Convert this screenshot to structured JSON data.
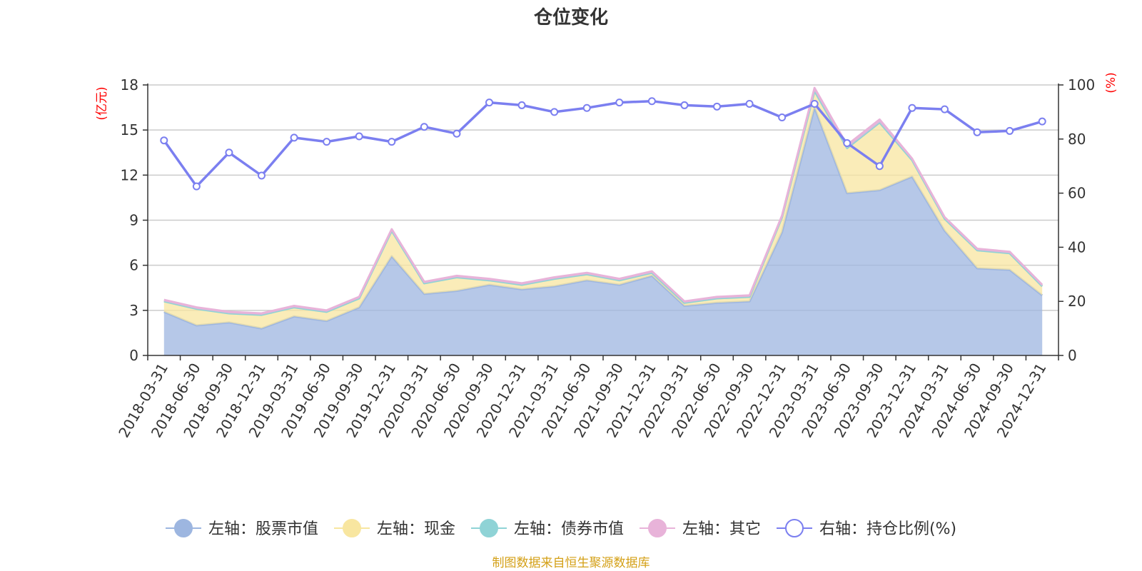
{
  "chart_data": {
    "type": "area",
    "title": "仓位变化",
    "left_unit": "(亿元)",
    "right_unit": "(%)",
    "categories": [
      "2018-03-31",
      "2018-06-30",
      "2018-09-30",
      "2018-12-31",
      "2019-03-31",
      "2019-06-30",
      "2019-09-30",
      "2019-12-31",
      "2020-03-31",
      "2020-06-30",
      "2020-09-30",
      "2020-12-31",
      "2021-03-31",
      "2021-06-30",
      "2021-09-30",
      "2021-12-31",
      "2022-03-31",
      "2022-06-30",
      "2022-09-30",
      "2022-12-31",
      "2023-03-31",
      "2023-06-30",
      "2023-09-30",
      "2023-12-31",
      "2024-03-31",
      "2024-06-30",
      "2024-09-30",
      "2024-12-31"
    ],
    "left_axis": {
      "min": 0,
      "max": 18,
      "ticks": [
        0,
        3,
        6,
        9,
        12,
        15,
        18
      ]
    },
    "right_axis": {
      "min": 0,
      "max": 100,
      "ticks": [
        0,
        20,
        40,
        60,
        80,
        100
      ]
    },
    "series": [
      {
        "name": "左轴：股票市值",
        "axis": "left",
        "type": "stacked-area",
        "color": "#9db6e0",
        "values": [
          2.9,
          2.0,
          2.2,
          1.8,
          2.6,
          2.3,
          3.2,
          6.6,
          4.1,
          4.3,
          4.7,
          4.4,
          4.6,
          5.0,
          4.7,
          5.3,
          3.3,
          3.5,
          3.6,
          8.2,
          16.5,
          10.8,
          11.0,
          11.9,
          8.3,
          5.8,
          5.7,
          4.0
        ]
      },
      {
        "name": "左轴：现金",
        "axis": "left",
        "type": "stacked-area",
        "color": "#f8e6a0",
        "values": [
          0.7,
          1.1,
          0.6,
          0.9,
          0.6,
          0.6,
          0.6,
          1.7,
          0.7,
          0.9,
          0.3,
          0.3,
          0.5,
          0.4,
          0.3,
          0.2,
          0.2,
          0.3,
          0.3,
          1.0,
          1.1,
          3.0,
          4.5,
          1.1,
          0.8,
          1.2,
          1.1,
          0.6
        ]
      },
      {
        "name": "左轴：债券市值",
        "axis": "left",
        "type": "stacked-area",
        "color": "#8fd3d6",
        "values": [
          0,
          0,
          0,
          0,
          0,
          0,
          0,
          0,
          0,
          0,
          0,
          0,
          0,
          0,
          0,
          0,
          0,
          0,
          0,
          0,
          0,
          0,
          0,
          0,
          0,
          0,
          0,
          0
        ]
      },
      {
        "name": "左轴：其它",
        "axis": "left",
        "type": "stacked-area",
        "color": "#e8b3d9",
        "values": [
          0.1,
          0.1,
          0.1,
          0.1,
          0.1,
          0.1,
          0.1,
          0.1,
          0.1,
          0.1,
          0.1,
          0.1,
          0.1,
          0.1,
          0.1,
          0.1,
          0.1,
          0.1,
          0.1,
          0.1,
          0.2,
          0.2,
          0.2,
          0.1,
          0.1,
          0.1,
          0.1,
          0.1
        ]
      },
      {
        "name": "右轴：持仓比例(%)",
        "axis": "right",
        "type": "line",
        "color": "#7b7ff0",
        "values": [
          79.5,
          62.5,
          75.0,
          66.5,
          80.5,
          79.0,
          81.0,
          79.0,
          84.5,
          82.0,
          93.5,
          92.5,
          90.0,
          91.5,
          93.5,
          94.0,
          92.5,
          92.0,
          93.0,
          88.0,
          93.0,
          78.5,
          70.0,
          91.5,
          91.0,
          82.5,
          83.0,
          86.5
        ]
      }
    ]
  },
  "source_text": "制图数据来自恒生聚源数据库"
}
